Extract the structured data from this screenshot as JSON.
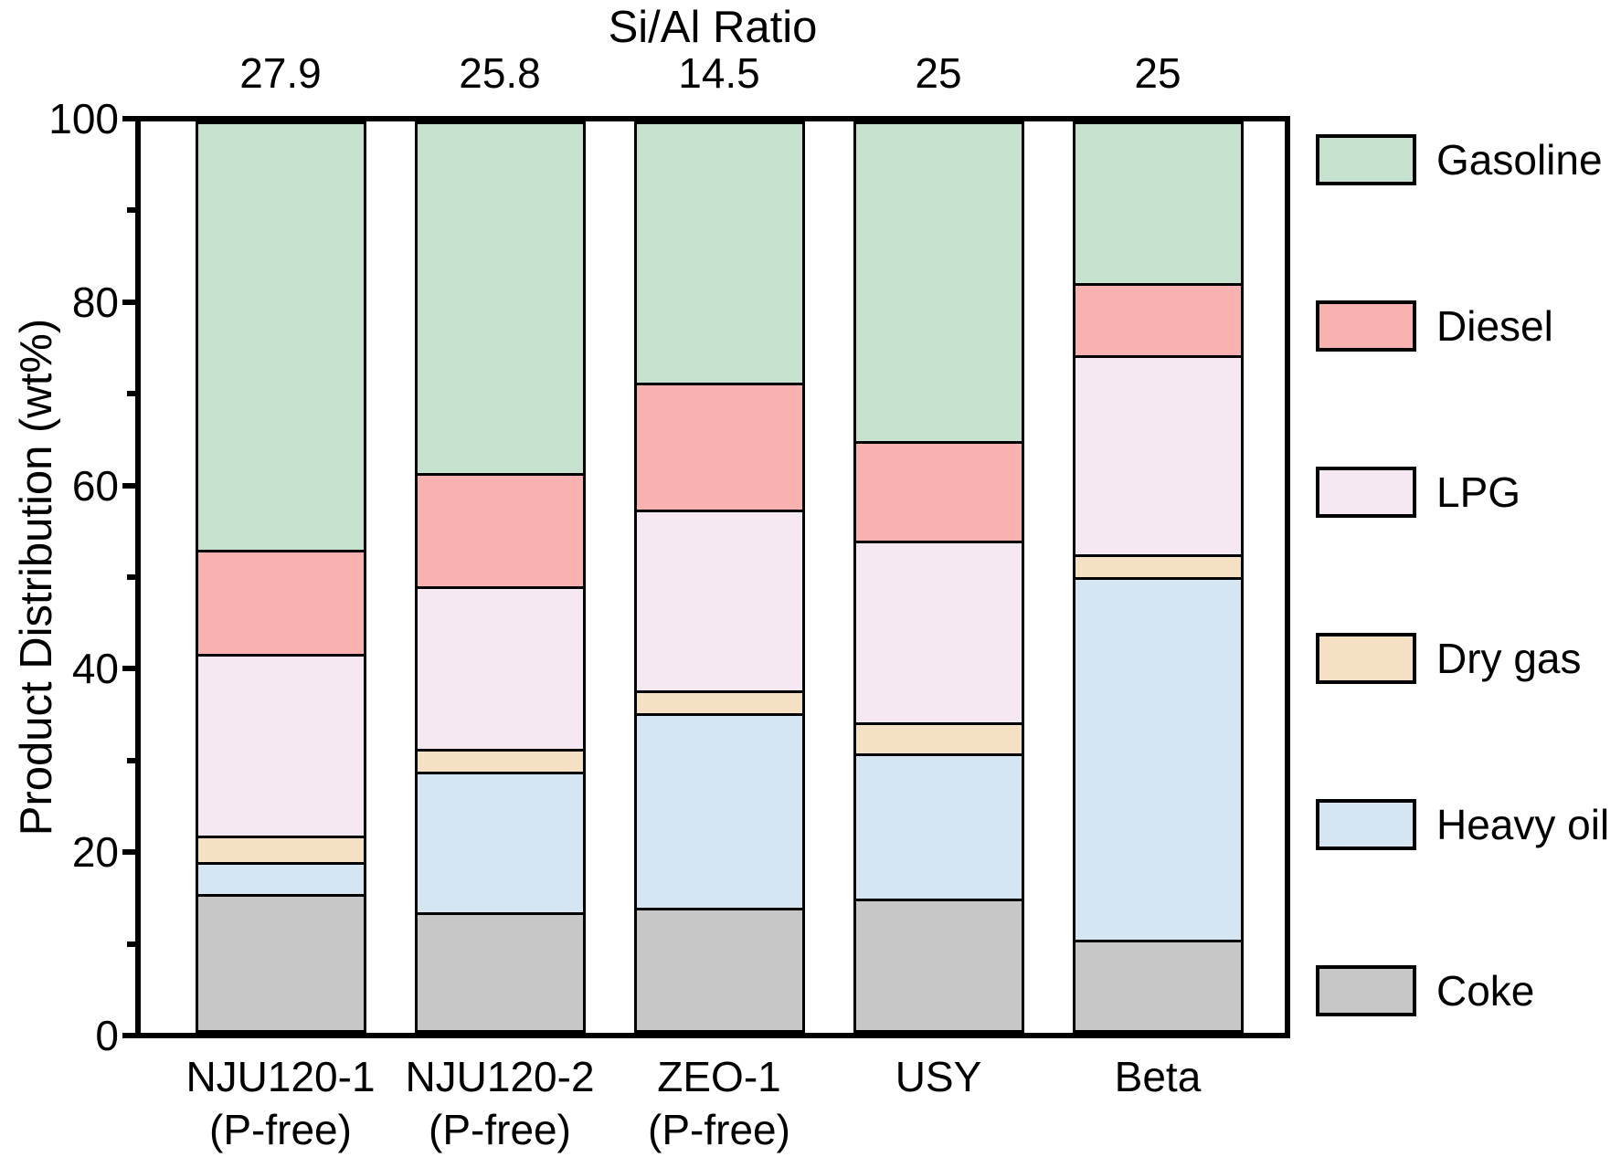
{
  "figure": {
    "top_axis_title": "Si/Al Ratio",
    "y_axis_title": "Product Distribution (wt%)"
  },
  "chart_data": {
    "type": "bar",
    "stacked": true,
    "orientation": "vertical",
    "x_top_label": "Si/Al Ratio",
    "ylabel": "Product Distribution (wt%)",
    "ylim": [
      0,
      100
    ],
    "y_major_ticks": [
      0,
      20,
      40,
      60,
      80,
      100
    ],
    "y_minor_ticks": [
      10,
      30,
      50,
      70,
      90
    ],
    "grid": false,
    "frame": "box",
    "categories": [
      [
        "NJU120-1",
        "(P-free)"
      ],
      [
        "NJU120-2",
        "(P-free)"
      ],
      [
        "ZEO-1",
        "(P-free)"
      ],
      [
        "USY"
      ],
      [
        "Beta"
      ]
    ],
    "category_names": [
      "NJU120-1 (P-free)",
      "NJU120-2 (P-free)",
      "ZEO-1 (P-free)",
      "USY",
      "Beta"
    ],
    "si_al_ratios": [
      "27.9",
      "25.8",
      "14.5",
      "25",
      "25"
    ],
    "series": [
      {
        "name": "Coke",
        "color": "#c7c7c7",
        "values": [
          15,
          13,
          13.5,
          14.5,
          10
        ]
      },
      {
        "name": "Heavy oil",
        "color": "#d5e5f2",
        "values": [
          3.5,
          15.5,
          21.5,
          16,
          40
        ]
      },
      {
        "name": "Dry gas",
        "color": "#f5e0c3",
        "values": [
          3,
          2.5,
          2.5,
          3.5,
          2.5
        ]
      },
      {
        "name": "LPG",
        "color": "#f5e8f2",
        "values": [
          20,
          18,
          20,
          20,
          22
        ]
      },
      {
        "name": "Diesel",
        "color": "#f9b2b0",
        "values": [
          11.5,
          12.5,
          14,
          11,
          8
        ]
      },
      {
        "name": "Gasoline",
        "color": "#c6e2cf",
        "values": [
          47,
          38.5,
          28.5,
          35,
          17.5
        ]
      }
    ],
    "legend": {
      "position": "right",
      "order": [
        "Gasoline",
        "Diesel",
        "LPG",
        "Dry gas",
        "Heavy oil",
        "Coke"
      ]
    },
    "axis_color": "#000000",
    "bar_outline_color": "#000000"
  }
}
